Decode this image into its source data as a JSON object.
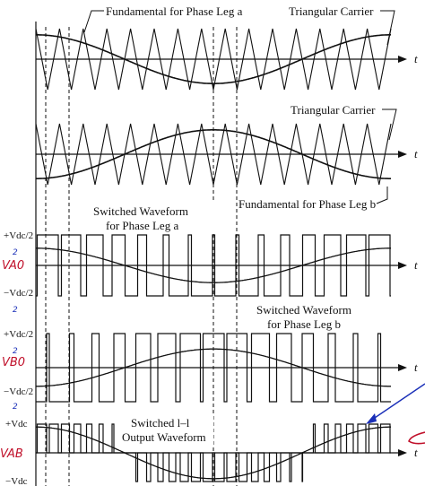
{
  "labels": {
    "fund_a": "Fundamental for Phase Leg a",
    "tri_1": "Triangular Carrier",
    "tri_2": "Triangular Carrier",
    "fund_b": "Fundamental for Phase Leg b",
    "sw_a_1": "Switched Waveform",
    "sw_a_2": "for Phase Leg a",
    "sw_b_1": "Switched Waveform",
    "sw_b_2": "for Phase Leg b",
    "ll_1": "Switched l–l",
    "ll_2": "Output Waveform",
    "t": "t",
    "vdc_pos": "+Vdc/2",
    "vdc_neg": "−Vdc/2",
    "vdc_ll": "+Vdc",
    "vdc_ll_neg": "−Vdc"
  },
  "annotations": {
    "va0": "VA0",
    "vb0": "VB0",
    "vab": "VAB",
    "half": "2"
  },
  "colors": {
    "ink": "#111111",
    "hand_red": "#c0102a",
    "hand_blue": "#1a2fb8"
  }
}
